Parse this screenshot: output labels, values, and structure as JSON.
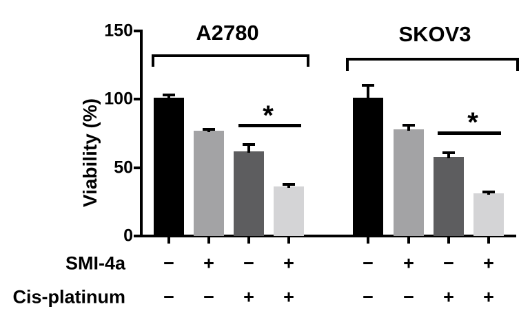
{
  "chart_data": {
    "type": "bar",
    "title": "",
    "ylabel": "Viability (%)",
    "ylim": [
      0,
      150
    ],
    "yticks": [
      0,
      50,
      100,
      150
    ],
    "grid": false,
    "legend": "none",
    "bar_colors": [
      "#000000",
      "#a3a3a5",
      "#5d5d5f",
      "#d4d4d6"
    ],
    "axis_color": "#000000",
    "groups": [
      {
        "label": "A2780",
        "bars": [
          {
            "value": 101,
            "error": 3
          },
          {
            "value": 77,
            "error": 2
          },
          {
            "value": 62,
            "error": 6
          },
          {
            "value": 36,
            "error": 3
          }
        ],
        "significance": {
          "symbol": "*",
          "between_bars": [
            3,
            4
          ]
        }
      },
      {
        "label": "SKOV3",
        "bars": [
          {
            "value": 101,
            "error": 10
          },
          {
            "value": 78,
            "error": 4
          },
          {
            "value": 58,
            "error": 4
          },
          {
            "value": 31,
            "error": 2
          }
        ],
        "significance": {
          "symbol": "*",
          "between_bars": [
            3,
            4
          ]
        }
      }
    ],
    "treatment_rows": [
      {
        "label": "SMI-4a",
        "values": [
          "−",
          "+",
          "−",
          "+",
          "−",
          "+",
          "−",
          "+"
        ]
      },
      {
        "label": "Cis-platinum",
        "values": [
          "−",
          "−",
          "+",
          "+",
          "−",
          "−",
          "+",
          "+"
        ]
      }
    ]
  }
}
